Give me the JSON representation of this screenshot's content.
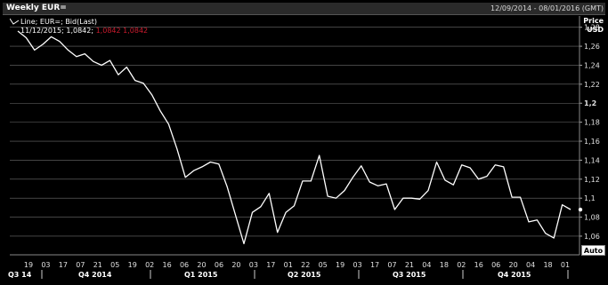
{
  "header": {
    "title": "Weekly EUR=",
    "date_range": "12/09/2014 - 08/01/2016 (GMT)"
  },
  "legend": {
    "line1": "Line; EUR=; Bid(Last)",
    "line2_value": "11/12/2015; 1,0842;",
    "line2_extra": "1,0842  1,0842"
  },
  "axis_header": {
    "label": "Price",
    "unit": "USD"
  },
  "auto_button": "Auto",
  "colors": {
    "background": "#000000",
    "line": "#ffffff",
    "grid": "#c8c8c8",
    "accent": "#cc1b2e"
  },
  "chart_data": {
    "type": "line",
    "title": "Weekly EUR=",
    "series": [
      {
        "name": "EUR=",
        "values": [
          1.276,
          1.269,
          1.256,
          1.262,
          1.27,
          1.265,
          1.256,
          1.249,
          1.252,
          1.244,
          1.24,
          1.245,
          1.23,
          1.238,
          1.224,
          1.221,
          1.209,
          1.192,
          1.178,
          1.152,
          1.122,
          1.129,
          1.133,
          1.138,
          1.136,
          1.112,
          1.082,
          1.052,
          1.085,
          1.091,
          1.105,
          1.064,
          1.085,
          1.092,
          1.118,
          1.118,
          1.145,
          1.102,
          1.1,
          1.108,
          1.122,
          1.134,
          1.117,
          1.113,
          1.115,
          1.088,
          1.1,
          1.1,
          1.099,
          1.108,
          1.138,
          1.119,
          1.114,
          1.135,
          1.132,
          1.12,
          1.123,
          1.135,
          1.133,
          1.101,
          1.101,
          1.075,
          1.077,
          1.063,
          1.058,
          1.093,
          1.088
        ]
      }
    ],
    "y_ticks": [
      "1,28",
      "1,26",
      "1,24",
      "1,22",
      "1,2",
      "1,18",
      "1,16",
      "1,14",
      "1,12",
      "1,1",
      "1,08",
      "1,06"
    ],
    "ylim": [
      1.045,
      1.29
    ],
    "last_value": 1.088,
    "x_tick_labels": [
      "19",
      "03",
      "17",
      "07",
      "21",
      "05",
      "19",
      "02",
      "16",
      "06",
      "20",
      "06",
      "20",
      "03",
      "17",
      "01",
      "22",
      "05",
      "19",
      "03",
      "17",
      "07",
      "21",
      "04",
      "18",
      "02",
      "16",
      "06",
      "20",
      "04",
      "18",
      "01"
    ],
    "x_period_labels": [
      "Q3 14",
      "Q4 2014",
      "Q1 2015",
      "Q2 2015",
      "Q3 2015",
      "Q4 2015"
    ],
    "grid": true
  }
}
